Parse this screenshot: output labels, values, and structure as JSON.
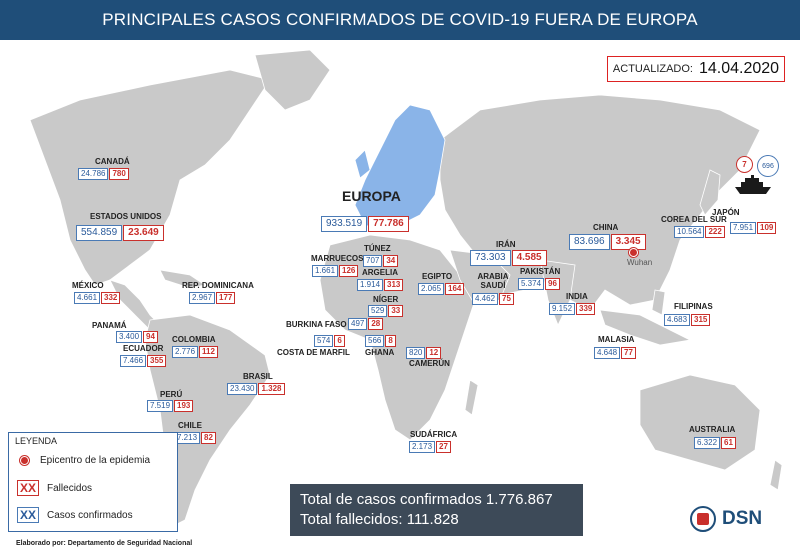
{
  "header": {
    "title": "PRINCIPALES CASOS CONFIRMADOS DE COVID-19 FUERA DE EUROPA"
  },
  "updated": {
    "label": "ACTUALIZADO:",
    "value": "14.04.2020"
  },
  "colors": {
    "header": "#1f4e79",
    "confirmed": "#4a7ab5",
    "deaths": "#c9302c",
    "land": "#c8c8c8",
    "europe": "#8ab4e8"
  },
  "europe": {
    "name": "EUROPA",
    "confirmed": "933.519",
    "deaths": "77.786"
  },
  "countries": [
    {
      "name": "CANADÁ",
      "confirmed": "24.786",
      "deaths": "780"
    },
    {
      "name": "ESTADOS UNIDOS",
      "confirmed": "554.859",
      "deaths": "23.649"
    },
    {
      "name": "MÉXICO",
      "confirmed": "4.661",
      "deaths": "332"
    },
    {
      "name": "REP. DOMINICANA",
      "confirmed": "2.967",
      "deaths": "177"
    },
    {
      "name": "PANAMÁ",
      "confirmed": "3.400",
      "deaths": "94"
    },
    {
      "name": "COLOMBIA",
      "confirmed": "2.776",
      "deaths": "112"
    },
    {
      "name": "ECUADOR",
      "confirmed": "7.466",
      "deaths": "355"
    },
    {
      "name": "BRASIL",
      "confirmed": "23.430",
      "deaths": "1.328"
    },
    {
      "name": "PERÚ",
      "confirmed": "7.519",
      "deaths": "193"
    },
    {
      "name": "CHILE",
      "confirmed": "7.213",
      "deaths": "82"
    },
    {
      "name": "MARRUECOS",
      "confirmed": "1.661",
      "deaths": "126"
    },
    {
      "name": "TÚNEZ",
      "confirmed": "707",
      "deaths": "34"
    },
    {
      "name": "ARGELIA",
      "confirmed": "1.914",
      "deaths": "313"
    },
    {
      "name": "EGIPTO",
      "confirmed": "2.065",
      "deaths": "164"
    },
    {
      "name": "NÍGER",
      "confirmed": "529",
      "deaths": "33"
    },
    {
      "name": "BURKINA FASO",
      "confirmed": "497",
      "deaths": "28"
    },
    {
      "name": "COSTA DE MARFIL",
      "confirmed": "574",
      "deaths": "6"
    },
    {
      "name": "GHANA",
      "confirmed": "566",
      "deaths": "8"
    },
    {
      "name": "CAMERÚN",
      "confirmed": "820",
      "deaths": "12"
    },
    {
      "name": "SUDÁFRICA",
      "confirmed": "2.173",
      "deaths": "27"
    },
    {
      "name": "IRÁN",
      "confirmed": "73.303",
      "deaths": "4.585"
    },
    {
      "name": "ARABIA SAUDÍ",
      "confirmed": "4.462",
      "deaths": "75"
    },
    {
      "name": "PAKISTÁN",
      "confirmed": "5.374",
      "deaths": "96"
    },
    {
      "name": "INDIA",
      "confirmed": "9.152",
      "deaths": "339"
    },
    {
      "name": "CHINA",
      "confirmed": "83.696",
      "deaths": "3.345"
    },
    {
      "name": "COREA DEL SUR",
      "confirmed": "10.564",
      "deaths": "222"
    },
    {
      "name": "JAPÓN",
      "confirmed": "7.951",
      "deaths": "109"
    },
    {
      "name": "FILIPINAS",
      "confirmed": "4.683",
      "deaths": "315"
    },
    {
      "name": "MALASIA",
      "confirmed": "4.648",
      "deaths": "77"
    },
    {
      "name": "AUSTRALIA",
      "confirmed": "6.322",
      "deaths": "61"
    }
  ],
  "wuhan": "Wuhan",
  "ship": {
    "deaths": "7",
    "confirmed": "696"
  },
  "legend": {
    "title": "LEYENDA",
    "epicenter": "Epicentro de la epidemia",
    "deaths_symbol": "XX",
    "deaths": "Fallecidos",
    "confirmed_symbol": "XX",
    "confirmed": "Casos confirmados"
  },
  "totals": {
    "confirmed": "Total de casos confirmados 1.776.867",
    "deaths": "Total fallecidos: 111.828"
  },
  "footer": "Elaborado por: Departamento de Seguridad Nacional",
  "logo": {
    "text": "DSN"
  }
}
